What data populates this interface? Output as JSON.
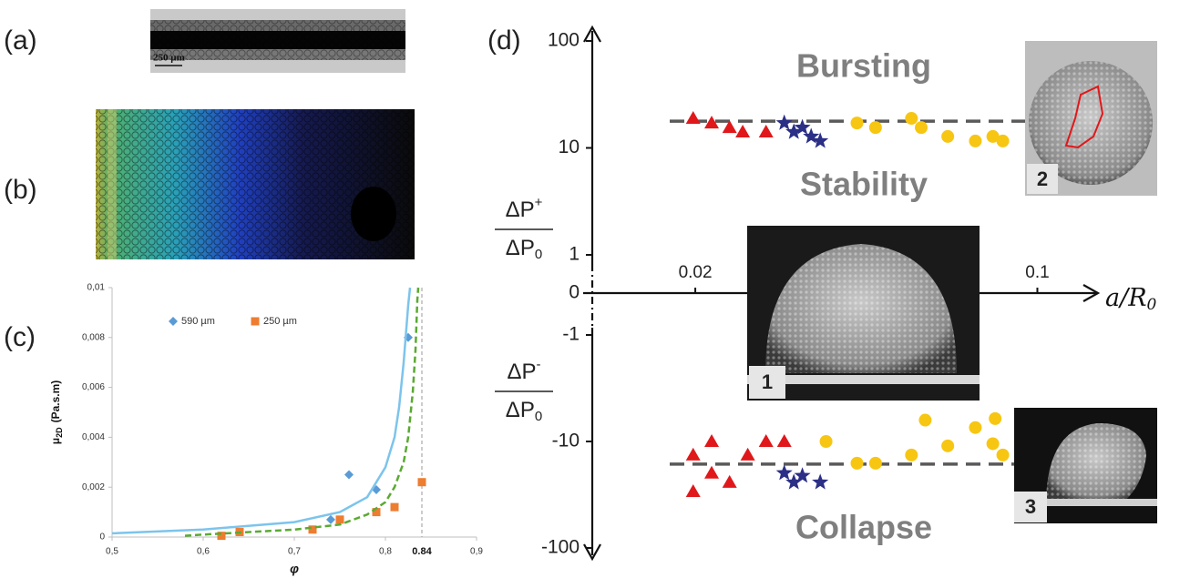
{
  "panel_labels": [
    "(a)",
    "(b)",
    "(c)",
    "(d)"
  ],
  "image_a": {
    "scale_bar": "250 µm"
  },
  "inset_labels": [
    "1",
    "2",
    "3"
  ],
  "chart_data": [
    {
      "type": "scatter",
      "x_label": "φ",
      "y_label": {
        "symbol": "μ",
        "subscript": "2D",
        "unit": "(Pa.s.m)"
      },
      "xlim": [
        0.5,
        0.9
      ],
      "xticks": [
        {
          "value": 0.5,
          "label": "0,5"
        },
        {
          "value": 0.6,
          "label": "0,6"
        },
        {
          "value": 0.7,
          "label": "0,7"
        },
        {
          "value": 0.8,
          "label": "0,8"
        },
        {
          "value": 0.9,
          "label": "0,9"
        }
      ],
      "ylim": [
        0,
        0.01
      ],
      "yticks": [
        0,
        {
          "value": 0.002,
          "label": "0,002"
        },
        {
          "value": 0.004,
          "label": "0,004"
        },
        {
          "value": 0.006,
          "label": "0,006"
        },
        {
          "value": 0.008,
          "label": "0,008"
        },
        {
          "value": 0.01,
          "label": "0,01"
        }
      ],
      "reference_line": {
        "value": 0.84,
        "label": "0.84"
      },
      "grid": false,
      "series": [
        {
          "name": "590 µm",
          "marker": "diamond",
          "color": "#5b9bd5",
          "x": [
            0.74,
            0.76,
            0.79,
            0.825
          ],
          "values": [
            0.0007,
            0.0025,
            0.0019,
            0.008
          ]
        },
        {
          "name": "250 µm",
          "marker": "square",
          "color": "#ed7d31",
          "x": [
            0.62,
            0.64,
            0.72,
            0.75,
            0.79,
            0.81,
            0.84
          ],
          "values": [
            5e-05,
            0.0002,
            0.0003,
            0.0007,
            0.001,
            0.0012,
            0.0022
          ]
        },
        {
          "style": "solid",
          "color": "#7cc4ec",
          "x": [
            0.5,
            0.6,
            0.7,
            0.75,
            0.78,
            0.8,
            0.81,
            0.815,
            0.82,
            0.825,
            0.827
          ],
          "values": [
            0.00015,
            0.0003,
            0.0006,
            0.001,
            0.0016,
            0.0028,
            0.004,
            0.0052,
            0.007,
            0.0093,
            0.01
          ]
        },
        {
          "style": "dashed",
          "color": "#5aaa32",
          "x": [
            0.58,
            0.6,
            0.7,
            0.75,
            0.78,
            0.8,
            0.81,
            0.82,
            0.825,
            0.83,
            0.833,
            0.835,
            0.836
          ],
          "values": [
            5e-05,
            0.0001,
            0.0003,
            0.0005,
            0.0009,
            0.0014,
            0.002,
            0.003,
            0.004,
            0.0058,
            0.0075,
            0.0095,
            0.01
          ]
        }
      ]
    },
    {
      "type": "scatter",
      "x_scale": "log",
      "y_scale": "symlog",
      "x_label": {
        "text": "a/R",
        "subscript": "0"
      },
      "y_label_positive": {
        "numerator": "ΔP",
        "sup": "+",
        "denominator": "ΔP",
        "sub": "0"
      },
      "y_label_negative": {
        "numerator": "ΔP",
        "sup": "-",
        "denominator": "ΔP",
        "sub": "0"
      },
      "xlim": [
        0.0118,
        0.133
      ],
      "xticks": [
        0.02,
        0.1
      ],
      "ylim": [
        -100,
        100
      ],
      "yticks": [
        100,
        10,
        1,
        0,
        -1,
        -10,
        -100
      ],
      "region_labels": [
        "Bursting",
        "Stability",
        "Collapse"
      ],
      "thresholds": [
        17.8,
        -16.3
      ],
      "series": [
        {
          "marker": "triangle",
          "color": "#e0181b",
          "x": [
            0.0198,
            0.0216,
            0.0235,
            0.025,
            0.0279,
            0.0198,
            0.0216,
            0.0235,
            0.0198,
            0.0256,
            0.0279,
            0.0304,
            0.0216
          ],
          "values": [
            18.9,
            17.1,
            15.5,
            14.1,
            14.1,
            -13.4,
            -19.8,
            -24.2,
            -29.5,
            -13.4,
            -10,
            -10,
            -10
          ]
        },
        {
          "marker": "star",
          "color": "#2b2f86",
          "x": [
            0.0304,
            0.0318,
            0.0331,
            0.0345,
            0.036,
            0.0304,
            0.0318,
            0.0331,
            0.036
          ],
          "values": [
            17.1,
            14.1,
            15.5,
            12.8,
            11.6,
            -19.8,
            -24.2,
            -21,
            -24.2
          ]
        },
        {
          "marker": "circle",
          "color": "#f7c612",
          "x": [
            0.0428,
            0.0467,
            0.0553,
            0.0579,
            0.0656,
            0.0747,
            0.0811,
            0.085,
            0.037,
            0.0428,
            0.0467,
            0.0553,
            0.059,
            0.0656,
            0.0747,
            0.082,
            0.085,
            0.0811
          ],
          "values": [
            17.1,
            15.5,
            18.9,
            15.5,
            12.8,
            11.6,
            12.8,
            11.6,
            -10,
            -16,
            -16,
            -13.4,
            -6.3,
            -11,
            -7.4,
            -6.1,
            -13.4,
            -10.5
          ]
        }
      ]
    }
  ]
}
